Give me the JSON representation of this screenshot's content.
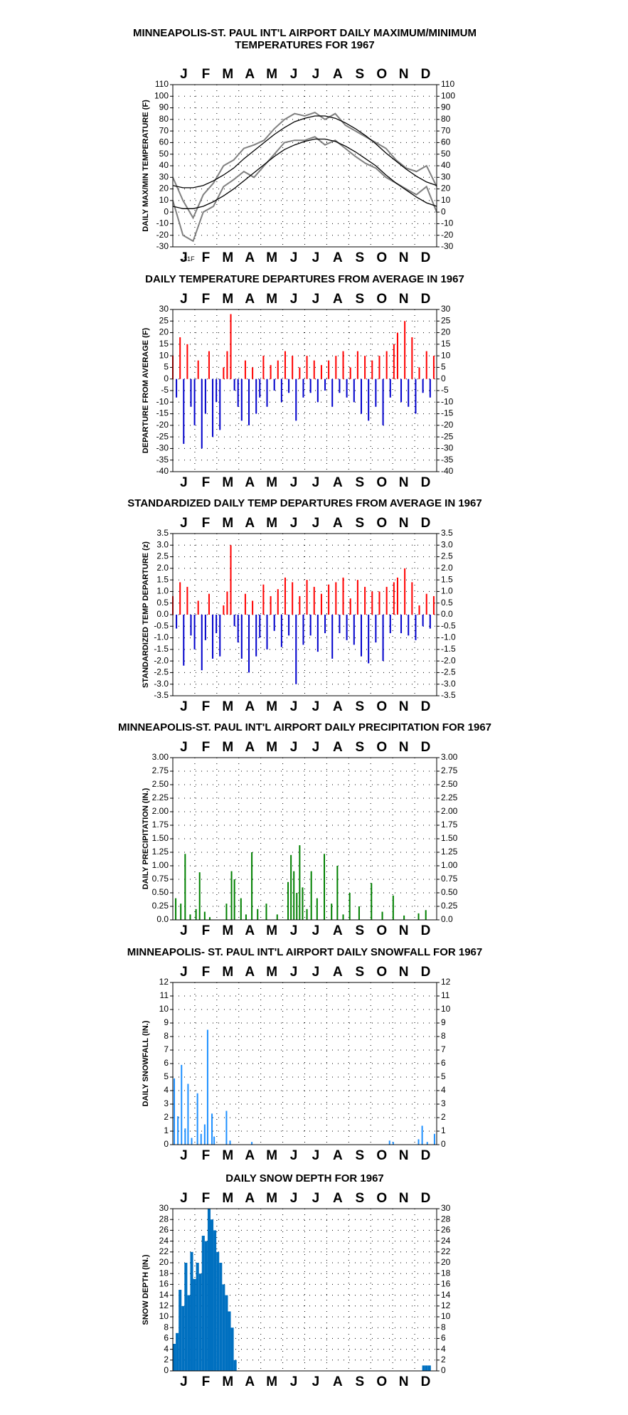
{
  "chart_data": [
    {
      "type": "line",
      "title": [
        "MINNEAPOLIS-ST. PAUL INT'L AIRPORT DAILY MAXIMUM/MINIMUM",
        "TEMPERATURES FOR 1967"
      ],
      "ylabel": "DAILY MAX/MIN TEMPERATURE (F)",
      "months": [
        "J",
        "F",
        "M",
        "A",
        "M",
        "J",
        "J",
        "A",
        "S",
        "O",
        "N",
        "D"
      ],
      "xlim": [
        1,
        365
      ],
      "ylim": [
        -30,
        110
      ],
      "yticks": [
        -30,
        -20,
        -10,
        0,
        10,
        20,
        30,
        40,
        50,
        60,
        70,
        80,
        90,
        100,
        110
      ],
      "grid": true,
      "x": [
        1,
        15,
        29,
        43,
        57,
        71,
        85,
        99,
        113,
        127,
        141,
        155,
        169,
        183,
        197,
        211,
        225,
        239,
        253,
        267,
        281,
        295,
        309,
        323,
        337,
        351,
        365
      ],
      "series": [
        {
          "color": "#808080",
          "values": [
            30,
            10,
            -5,
            15,
            25,
            40,
            45,
            55,
            58,
            62,
            72,
            80,
            85,
            83,
            86,
            80,
            85,
            75,
            70,
            65,
            60,
            55,
            45,
            38,
            35,
            40,
            22
          ]
        },
        {
          "color": "#808080",
          "values": [
            10,
            -20,
            -25,
            0,
            5,
            22,
            28,
            35,
            30,
            40,
            50,
            60,
            62,
            62,
            65,
            58,
            62,
            55,
            48,
            42,
            38,
            30,
            25,
            20,
            15,
            22,
            0
          ]
        },
        {
          "color": "#000000",
          "values": [
            23,
            21,
            21,
            23,
            27,
            32,
            38,
            46,
            53,
            60,
            67,
            73,
            78,
            81,
            83,
            83,
            81,
            77,
            72,
            66,
            59,
            51,
            44,
            37,
            31,
            26,
            23
          ]
        },
        {
          "color": "#000000",
          "values": [
            5,
            3,
            3,
            5,
            9,
            14,
            20,
            27,
            34,
            41,
            48,
            54,
            58,
            61,
            63,
            63,
            61,
            57,
            52,
            46,
            40,
            32,
            25,
            19,
            13,
            8,
            5
          ]
        }
      ],
      "annotation": {
        "text": "-31F",
        "x": 22,
        "y": -31
      }
    },
    {
      "type": "bar",
      "title": "DAILY TEMPERATURE DEPARTURES FROM AVERAGE IN 1967",
      "ylabel": "DEPARTURE FROM AVERAGE (F)",
      "months": [
        "J",
        "F",
        "M",
        "A",
        "M",
        "J",
        "J",
        "A",
        "S",
        "O",
        "N",
        "D"
      ],
      "xlim": [
        1,
        365
      ],
      "ylim": [
        -40,
        30
      ],
      "yticks": [
        -40,
        -35,
        -30,
        -25,
        -20,
        -15,
        -10,
        -5,
        0,
        5,
        10,
        15,
        20,
        25,
        30
      ],
      "grid": true,
      "pos_color": "#ff0000",
      "neg_color": "#0000cc",
      "x": [
        1,
        6,
        11,
        16,
        21,
        26,
        31,
        36,
        41,
        46,
        51,
        56,
        61,
        66,
        71,
        76,
        81,
        86,
        91,
        96,
        101,
        106,
        111,
        116,
        121,
        126,
        131,
        136,
        141,
        146,
        151,
        156,
        161,
        166,
        171,
        176,
        181,
        186,
        191,
        196,
        201,
        206,
        211,
        216,
        221,
        226,
        231,
        236,
        241,
        246,
        251,
        256,
        261,
        266,
        271,
        276,
        281,
        286,
        291,
        296,
        301,
        306,
        311,
        316,
        321,
        326,
        331,
        336,
        341,
        346,
        351,
        356,
        361
      ],
      "values": [
        10,
        -8,
        18,
        -28,
        15,
        -12,
        -20,
        8,
        -30,
        -15,
        12,
        -25,
        -10,
        -22,
        5,
        12,
        28,
        -5,
        -12,
        -18,
        8,
        -20,
        5,
        -15,
        -8,
        10,
        -12,
        6,
        -5,
        8,
        -10,
        12,
        -6,
        10,
        -18,
        5,
        -8,
        10,
        -6,
        8,
        -10,
        6,
        -5,
        8,
        -12,
        10,
        -6,
        12,
        -8,
        5,
        -10,
        12,
        -15,
        10,
        -18,
        8,
        -12,
        10,
        -20,
        12,
        -8,
        15,
        20,
        -10,
        25,
        -12,
        18,
        -15,
        5,
        -6,
        12,
        -8,
        10
      ]
    },
    {
      "type": "bar",
      "title": "STANDARDIZED DAILY TEMP DEPARTURES FROM AVERAGE IN 1967",
      "ylabel": "STANDARDIZED TEMP DEPARTURE (z)",
      "months": [
        "J",
        "F",
        "M",
        "A",
        "M",
        "J",
        "J",
        "A",
        "S",
        "O",
        "N",
        "D"
      ],
      "xlim": [
        1,
        365
      ],
      "ylim": [
        -3.5,
        3.5
      ],
      "yticks": [
        -3.5,
        {
          "value": -3,
          "label": "-3.0"
        },
        -2.5,
        {
          "value": -2,
          "label": "-2.0"
        },
        -1.5,
        {
          "value": -1,
          "label": "-1.0"
        },
        -0.5,
        {
          "value": 0,
          "label": "0.0"
        },
        0.5,
        {
          "value": 1,
          "label": "1.0"
        },
        1.5,
        {
          "value": 2,
          "label": "2.0"
        },
        2.5,
        {
          "value": 3,
          "label": "3.0"
        },
        3.5
      ],
      "grid": true,
      "pos_color": "#ff0000",
      "neg_color": "#0000cc",
      "x": [
        1,
        6,
        11,
        16,
        21,
        26,
        31,
        36,
        41,
        46,
        51,
        56,
        61,
        66,
        71,
        76,
        81,
        86,
        91,
        96,
        101,
        106,
        111,
        116,
        121,
        126,
        131,
        136,
        141,
        146,
        151,
        156,
        161,
        166,
        171,
        176,
        181,
        186,
        191,
        196,
        201,
        206,
        211,
        216,
        221,
        226,
        231,
        236,
        241,
        246,
        251,
        256,
        261,
        266,
        271,
        276,
        281,
        286,
        291,
        296,
        301,
        306,
        311,
        316,
        321,
        326,
        331,
        336,
        341,
        346,
        351,
        356,
        361
      ],
      "values": [
        0.8,
        -0.6,
        1.4,
        -2.2,
        1.2,
        -0.9,
        -1.5,
        0.6,
        -2.4,
        -1.1,
        0.9,
        -1.9,
        -0.8,
        -1.8,
        0.4,
        1.0,
        3.0,
        -0.5,
        -1.2,
        -1.9,
        0.9,
        -2.5,
        0.6,
        -1.8,
        -1.0,
        1.3,
        -1.5,
        0.8,
        -0.7,
        1.1,
        -1.4,
        1.6,
        -0.9,
        1.4,
        -3.0,
        0.8,
        -1.3,
        1.5,
        -0.9,
        1.2,
        -1.6,
        0.9,
        -0.8,
        1.3,
        -1.9,
        1.4,
        -0.8,
        1.6,
        -1.1,
        0.7,
        -1.3,
        1.5,
        -1.8,
        1.2,
        -2.1,
        1.0,
        -1.2,
        1.0,
        -2.0,
        1.2,
        -0.8,
        1.4,
        1.6,
        -0.8,
        2.0,
        -0.9,
        1.4,
        -1.1,
        0.4,
        -0.5,
        0.9,
        -0.6,
        0.8
      ]
    },
    {
      "type": "bar",
      "title": "MINNEAPOLIS-ST. PAUL INT'L AIRPORT DAILY PRECIPITATION FOR 1967",
      "ylabel": "DAILY PRECIPITATION (IN.)",
      "months": [
        "J",
        "F",
        "M",
        "A",
        "M",
        "J",
        "J",
        "A",
        "S",
        "O",
        "N",
        "D"
      ],
      "xlim": [
        1,
        365
      ],
      "ylim": [
        0,
        3
      ],
      "yticks": [
        {
          "value": 0,
          "label": "0.0"
        },
        0.25,
        {
          "value": 0.5,
          "label": "0.50"
        },
        0.75,
        {
          "value": 1,
          "label": "1.00"
        },
        1.25,
        {
          "value": 1.5,
          "label": "1.50"
        },
        1.75,
        {
          "value": 2,
          "label": "2.00"
        },
        2.25,
        {
          "value": 2.5,
          "label": "2.50"
        },
        2.75,
        {
          "value": 3,
          "label": "3.00"
        }
      ],
      "grid": true,
      "color": "#008000",
      "x": [
        5,
        12,
        18,
        25,
        33,
        38,
        45,
        52,
        75,
        82,
        86,
        95,
        102,
        110,
        118,
        130,
        145,
        160,
        164,
        168,
        172,
        176,
        180,
        186,
        192,
        200,
        210,
        220,
        228,
        236,
        245,
        258,
        275,
        290,
        305,
        320,
        340,
        350
      ],
      "values": [
        0.4,
        0.3,
        1.22,
        0.1,
        0.2,
        0.88,
        0.15,
        0.05,
        0.3,
        0.9,
        0.75,
        0.4,
        0.1,
        1.25,
        0.2,
        0.3,
        0.1,
        0.7,
        1.2,
        0.9,
        0.5,
        1.38,
        0.6,
        0.2,
        0.9,
        0.4,
        1.22,
        0.3,
        1.0,
        0.1,
        0.5,
        0.25,
        0.68,
        0.15,
        0.45,
        0.08,
        0.12,
        0.18
      ]
    },
    {
      "type": "bar",
      "title": "MINNEAPOLIS- ST. PAUL INT'L AIRPORT DAILY SNOWFALL FOR 1967",
      "ylabel": "DAILY SNOWFALL (IN.)",
      "months": [
        "J",
        "F",
        "M",
        "A",
        "M",
        "J",
        "J",
        "A",
        "S",
        "O",
        "N",
        "D"
      ],
      "xlim": [
        1,
        365
      ],
      "ylim": [
        0,
        12
      ],
      "yticks": [
        0,
        1,
        2,
        3,
        4,
        5,
        6,
        7,
        8,
        9,
        10,
        11,
        12
      ],
      "grid": true,
      "color": "#1e90ff",
      "x": [
        3,
        8,
        13,
        18,
        22,
        27,
        35,
        40,
        45,
        49,
        55,
        58,
        75,
        80,
        110,
        300,
        305,
        340,
        345,
        352,
        362
      ],
      "values": [
        4.9,
        2.1,
        5.9,
        1.2,
        4.5,
        0.5,
        3.8,
        0.8,
        1.5,
        8.5,
        2.3,
        0.6,
        2.5,
        0.3,
        0.2,
        0.3,
        0.2,
        0.4,
        1.4,
        0.2,
        0.8
      ]
    },
    {
      "type": "bar",
      "title": "DAILY SNOW DEPTH FOR 1967",
      "ylabel": "SNOW DEPTH (IN.)",
      "months": [
        "J",
        "F",
        "M",
        "A",
        "M",
        "J",
        "J",
        "A",
        "S",
        "O",
        "N",
        "D"
      ],
      "xlim": [
        1,
        365
      ],
      "ylim": [
        0,
        30
      ],
      "yticks": [
        0,
        2,
        4,
        6,
        8,
        10,
        12,
        14,
        16,
        18,
        20,
        22,
        24,
        26,
        28,
        30
      ],
      "grid": true,
      "color": "#0070c0",
      "x": [
        1,
        5,
        9,
        13,
        17,
        21,
        25,
        29,
        33,
        37,
        41,
        45,
        49,
        53,
        57,
        61,
        65,
        69,
        73,
        77,
        81,
        85,
        345,
        349,
        353
      ],
      "values": [
        5,
        7,
        15,
        12,
        20,
        14,
        22,
        17,
        20,
        18,
        25,
        24,
        30,
        28,
        26,
        22,
        20,
        16,
        14,
        11,
        8,
        2,
        1,
        1,
        1
      ]
    }
  ]
}
